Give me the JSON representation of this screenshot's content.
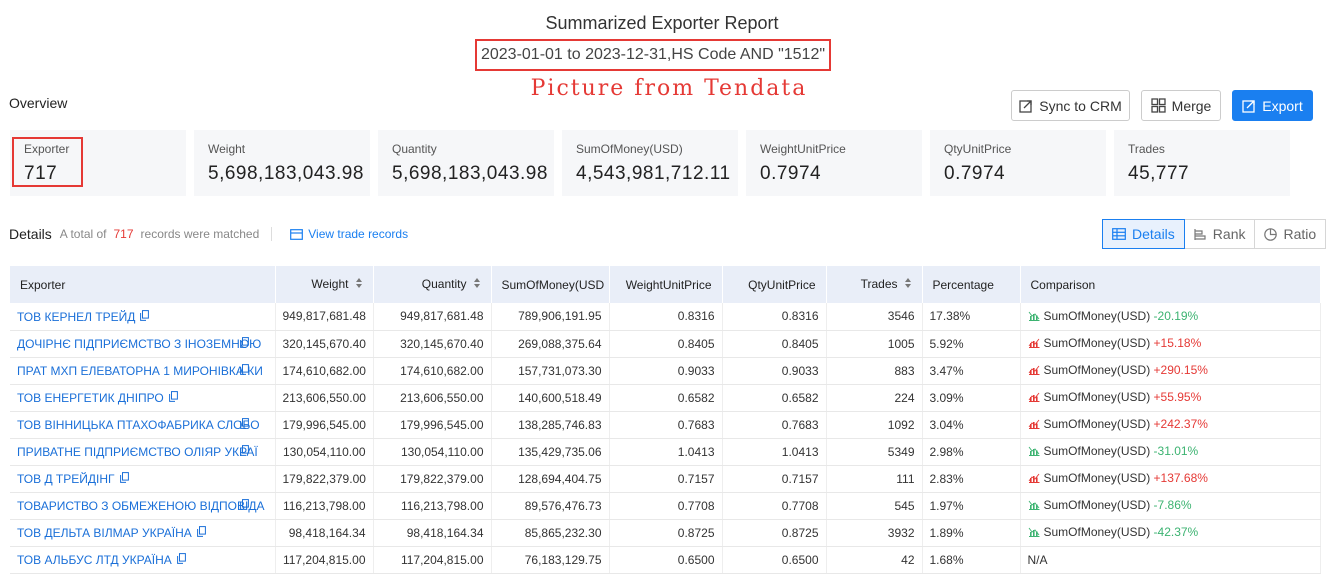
{
  "header": {
    "title": "Summarized Exporter Report",
    "subtitle": "2023-01-01 to 2023-12-31,HS Code AND \"1512\"",
    "watermark": "Picture from Tendata"
  },
  "overview_label": "Overview",
  "buttons": {
    "sync": "Sync to CRM",
    "merge": "Merge",
    "export": "Export"
  },
  "cards": [
    {
      "label": "Exporter",
      "value": "717"
    },
    {
      "label": "Weight",
      "value": "5,698,183,043.98"
    },
    {
      "label": "Quantity",
      "value": "5,698,183,043.98"
    },
    {
      "label": "SumOfMoney(USD)",
      "value": "4,543,981,712.11"
    },
    {
      "label": "WeightUnitPrice",
      "value": "0.7974"
    },
    {
      "label": "QtyUnitPrice",
      "value": "0.7974"
    },
    {
      "label": "Trades",
      "value": "45,777"
    }
  ],
  "details": {
    "title": "Details",
    "total_prefix": "A total of",
    "total_count": "717",
    "total_suffix": "records were matched",
    "view_link": "View trade records"
  },
  "view_toggle": {
    "details": "Details",
    "rank": "Rank",
    "ratio": "Ratio"
  },
  "colors": {
    "accent": "#1a7ff0",
    "highlight": "#e53935",
    "up": "#e53935",
    "down": "#3cb371"
  },
  "table": {
    "columns": [
      "Exporter",
      "Weight",
      "Quantity",
      "SumOfMoney(USD",
      "WeightUnitPrice",
      "QtyUnitPrice",
      "Trades",
      "Percentage",
      "Comparison"
    ],
    "rows": [
      [
        "ТОВ КЕРНЕЛ ТРЕЙД",
        "949,817,681.48",
        "949,817,681.48",
        "789,906,191.95",
        "0.8316",
        "0.8316",
        "3546",
        "17.38%",
        "SumOfMoney(USD)",
        "-20.19%",
        "down"
      ],
      [
        "ДОЧІРНЄ ПІДПРИЄМСТВО З ІНОЗЕМНОЮ",
        "320,145,670.40",
        "320,145,670.40",
        "269,088,375.64",
        "0.8405",
        "0.8405",
        "1005",
        "5.92%",
        "SumOfMoney(USD)",
        "+15.18%",
        "up"
      ],
      [
        "ПРАТ МХП ЕЛЕВАТОРНА 1 МИРОНІВКА КИ",
        "174,610,682.00",
        "174,610,682.00",
        "157,731,073.30",
        "0.9033",
        "0.9033",
        "883",
        "3.47%",
        "SumOfMoney(USD)",
        "+290.15%",
        "up"
      ],
      [
        "ТОВ ЕНЕРГЕТИК ДНІПРО",
        "213,606,550.00",
        "213,606,550.00",
        "140,600,518.49",
        "0.6582",
        "0.6582",
        "224",
        "3.09%",
        "SumOfMoney(USD)",
        "+55.95%",
        "up"
      ],
      [
        "ТОВ ВІННИЦЬКА ПТАХОФАБРИКА СЛОБО",
        "179,996,545.00",
        "179,996,545.00",
        "138,285,746.83",
        "0.7683",
        "0.7683",
        "1092",
        "3.04%",
        "SumOfMoney(USD)",
        "+242.37%",
        "up"
      ],
      [
        "ПРИВАТНЕ ПІДПРИЄМСТВО ОЛІЯР УКРАЇ",
        "130,054,110.00",
        "130,054,110.00",
        "135,429,735.06",
        "1.0413",
        "1.0413",
        "5349",
        "2.98%",
        "SumOfMoney(USD)",
        "-31.01%",
        "down"
      ],
      [
        "ТОВ Д ТРЕЙДІНГ",
        "179,822,379.00",
        "179,822,379.00",
        "128,694,404.75",
        "0.7157",
        "0.7157",
        "111",
        "2.83%",
        "SumOfMoney(USD)",
        "+137.68%",
        "up"
      ],
      [
        "ТОВАРИСТВО З ОБМЕЖЕНОЮ ВІДПОВІДА",
        "116,213,798.00",
        "116,213,798.00",
        "89,576,476.73",
        "0.7708",
        "0.7708",
        "545",
        "1.97%",
        "SumOfMoney(USD)",
        "-7.86%",
        "down"
      ],
      [
        "ТОВ ДЕЛЬТА ВІЛМАР УКРАЇНА",
        "98,418,164.34",
        "98,418,164.34",
        "85,865,232.30",
        "0.8725",
        "0.8725",
        "3932",
        "1.89%",
        "SumOfMoney(USD)",
        "-42.37%",
        "down"
      ],
      [
        "ТОВ АЛЬБУС ЛТД УКРАЇНА",
        "117,204,815.00",
        "117,204,815.00",
        "76,183,129.75",
        "0.6500",
        "0.6500",
        "42",
        "1.68%",
        "N/A",
        "",
        "none"
      ]
    ]
  }
}
